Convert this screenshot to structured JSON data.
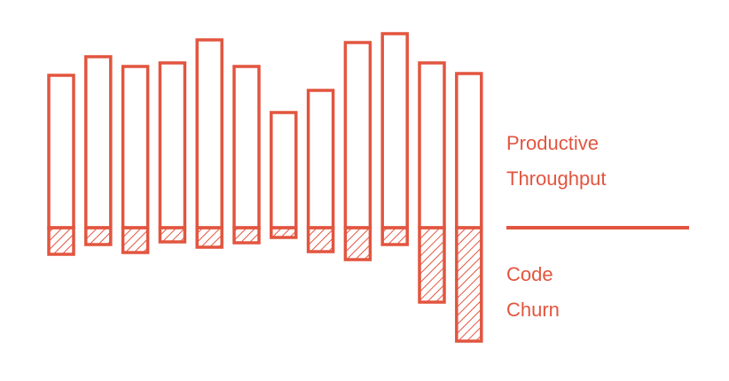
{
  "chart_data": {
    "type": "diverging-bar",
    "ylim": [
      -140,
      230
    ],
    "series": [
      {
        "name": "Productive Throughput",
        "color": "#e2553f",
        "values": [
          172,
          193,
          182,
          186,
          212,
          182,
          130,
          155,
          209,
          219,
          186,
          174
        ]
      },
      {
        "name": "Code Churn",
        "color": "#e2553f",
        "values": [
          -30,
          -19,
          -28,
          -16,
          -22,
          -17,
          -11,
          -27,
          -36,
          -19,
          -84,
          -128
        ]
      }
    ]
  }
}
